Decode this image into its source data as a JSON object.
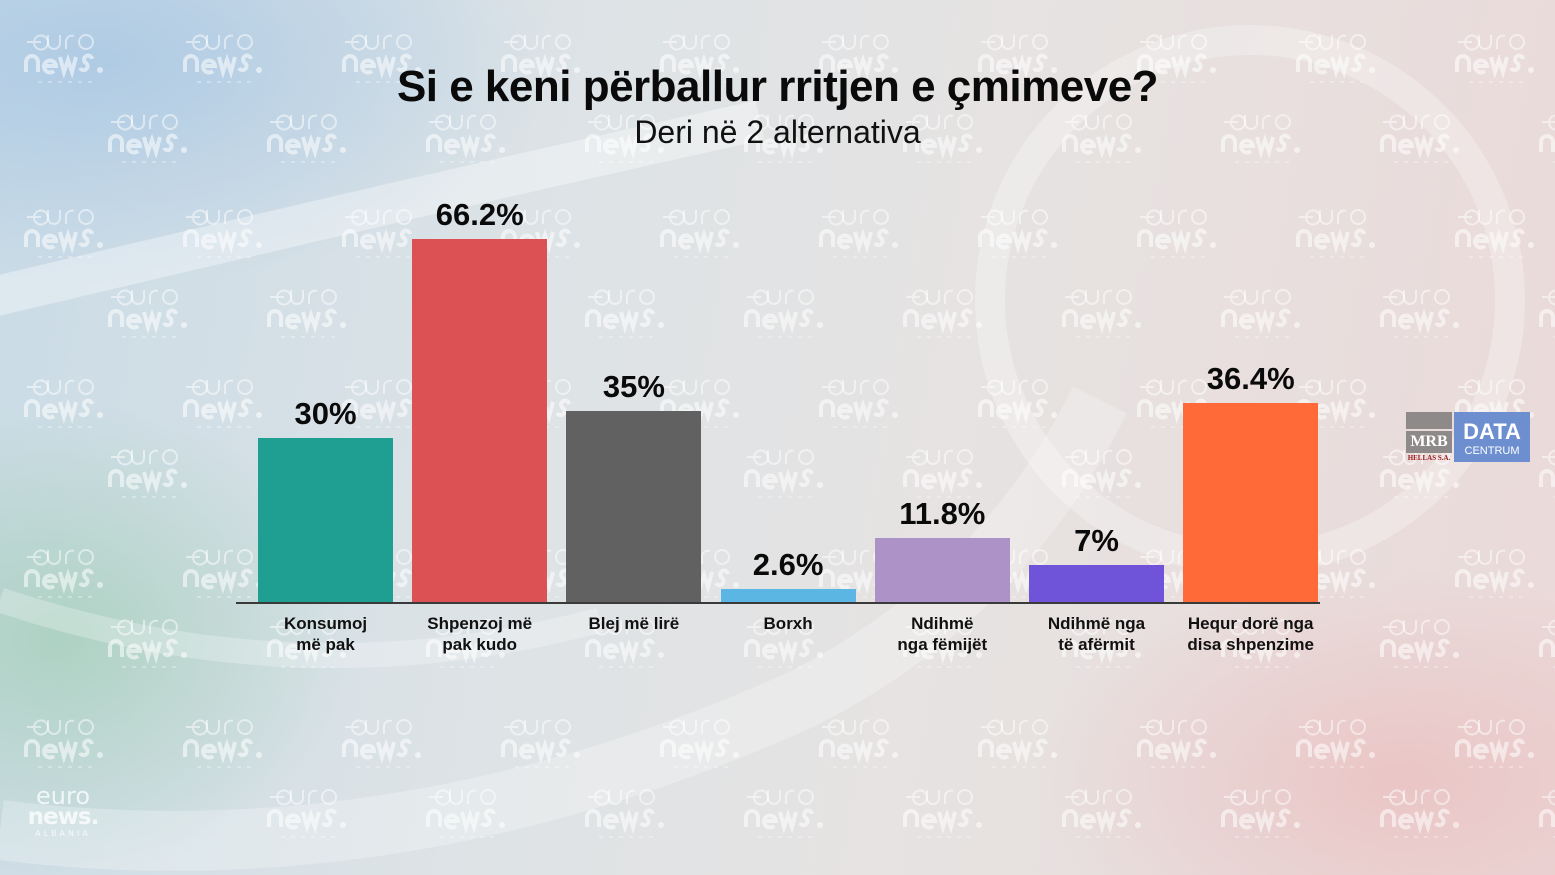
{
  "header": {
    "title": "Si e keni përballur rritjen e çmimeve?",
    "subtitle": "Deri në 2 alternativa"
  },
  "watermark": {
    "line1": "euro",
    "line2": "news.",
    "line3": "ALBANIA"
  },
  "logo": {
    "mrb": "MRB",
    "mrb_sub": "HELLAS S.A.",
    "data": "DATA",
    "centrum": "CENTRUM"
  },
  "chart_data": {
    "type": "bar",
    "title": "Si e keni përballur rritjen e çmimeve?",
    "subtitle": "Deri në 2 alternativa",
    "xlabel": "",
    "ylabel": "",
    "ylim": [
      0,
      70
    ],
    "grid": false,
    "categories": [
      [
        "Konsumoj",
        "më pak"
      ],
      [
        "Shpenzoj më",
        "pak kudo"
      ],
      [
        "Blej më lirë"
      ],
      [
        "Borxh"
      ],
      [
        "Ndihmë",
        "nga fëmijët"
      ],
      [
        "Ndihmë nga",
        "të afërmit"
      ],
      [
        "Hequr dorë nga",
        "disa shpenzime"
      ]
    ],
    "values": [
      30,
      66.2,
      35,
      2.6,
      11.8,
      7,
      36.4
    ],
    "value_labels": [
      "30%",
      "66.2%",
      "35%",
      "2.6%",
      "11.8%",
      "7%",
      "36.4%"
    ],
    "colors": [
      "#1f9e92",
      "#dc5254",
      "#616161",
      "#5cb6e4",
      "#ad92c8",
      "#6f53d8",
      "#ff6a38"
    ]
  }
}
